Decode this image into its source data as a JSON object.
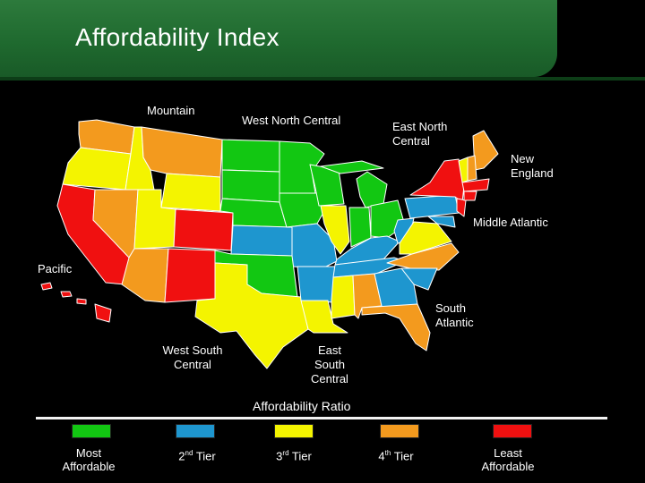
{
  "title": "Affordability Index",
  "regions": {
    "mountain": "Mountain",
    "west_north_central": "West North Central",
    "east_north_central": [
      "East North",
      "Central"
    ],
    "new_england": [
      "New",
      "England"
    ],
    "middle_atlantic": "Middle Atlantic",
    "pacific": "Pacific",
    "south_atlantic": [
      "South",
      "Atlantic"
    ],
    "west_south_central": [
      "West South",
      "Central"
    ],
    "east_south_central": [
      "East",
      "South",
      "Central"
    ]
  },
  "legend": {
    "title": "Affordability Ratio",
    "tiers": [
      {
        "label_lines": [
          "Most",
          "Affordable"
        ],
        "color": "#12c712"
      },
      {
        "ordinal": "2",
        "suffix": "nd",
        "word": "Tier",
        "color": "#1e96cf"
      },
      {
        "ordinal": "3",
        "suffix": "rd",
        "word": "Tier",
        "color": "#f4f400"
      },
      {
        "ordinal": "4",
        "suffix": "th",
        "word": "Tier",
        "color": "#f39a1e"
      },
      {
        "label_lines": [
          "Least",
          "Affordable"
        ],
        "color": "#f01010"
      }
    ]
  },
  "colors": {
    "green": "#12c712",
    "blue": "#1e96cf",
    "yellow": "#f4f400",
    "orange": "#f39a1e",
    "red": "#f01010"
  }
}
